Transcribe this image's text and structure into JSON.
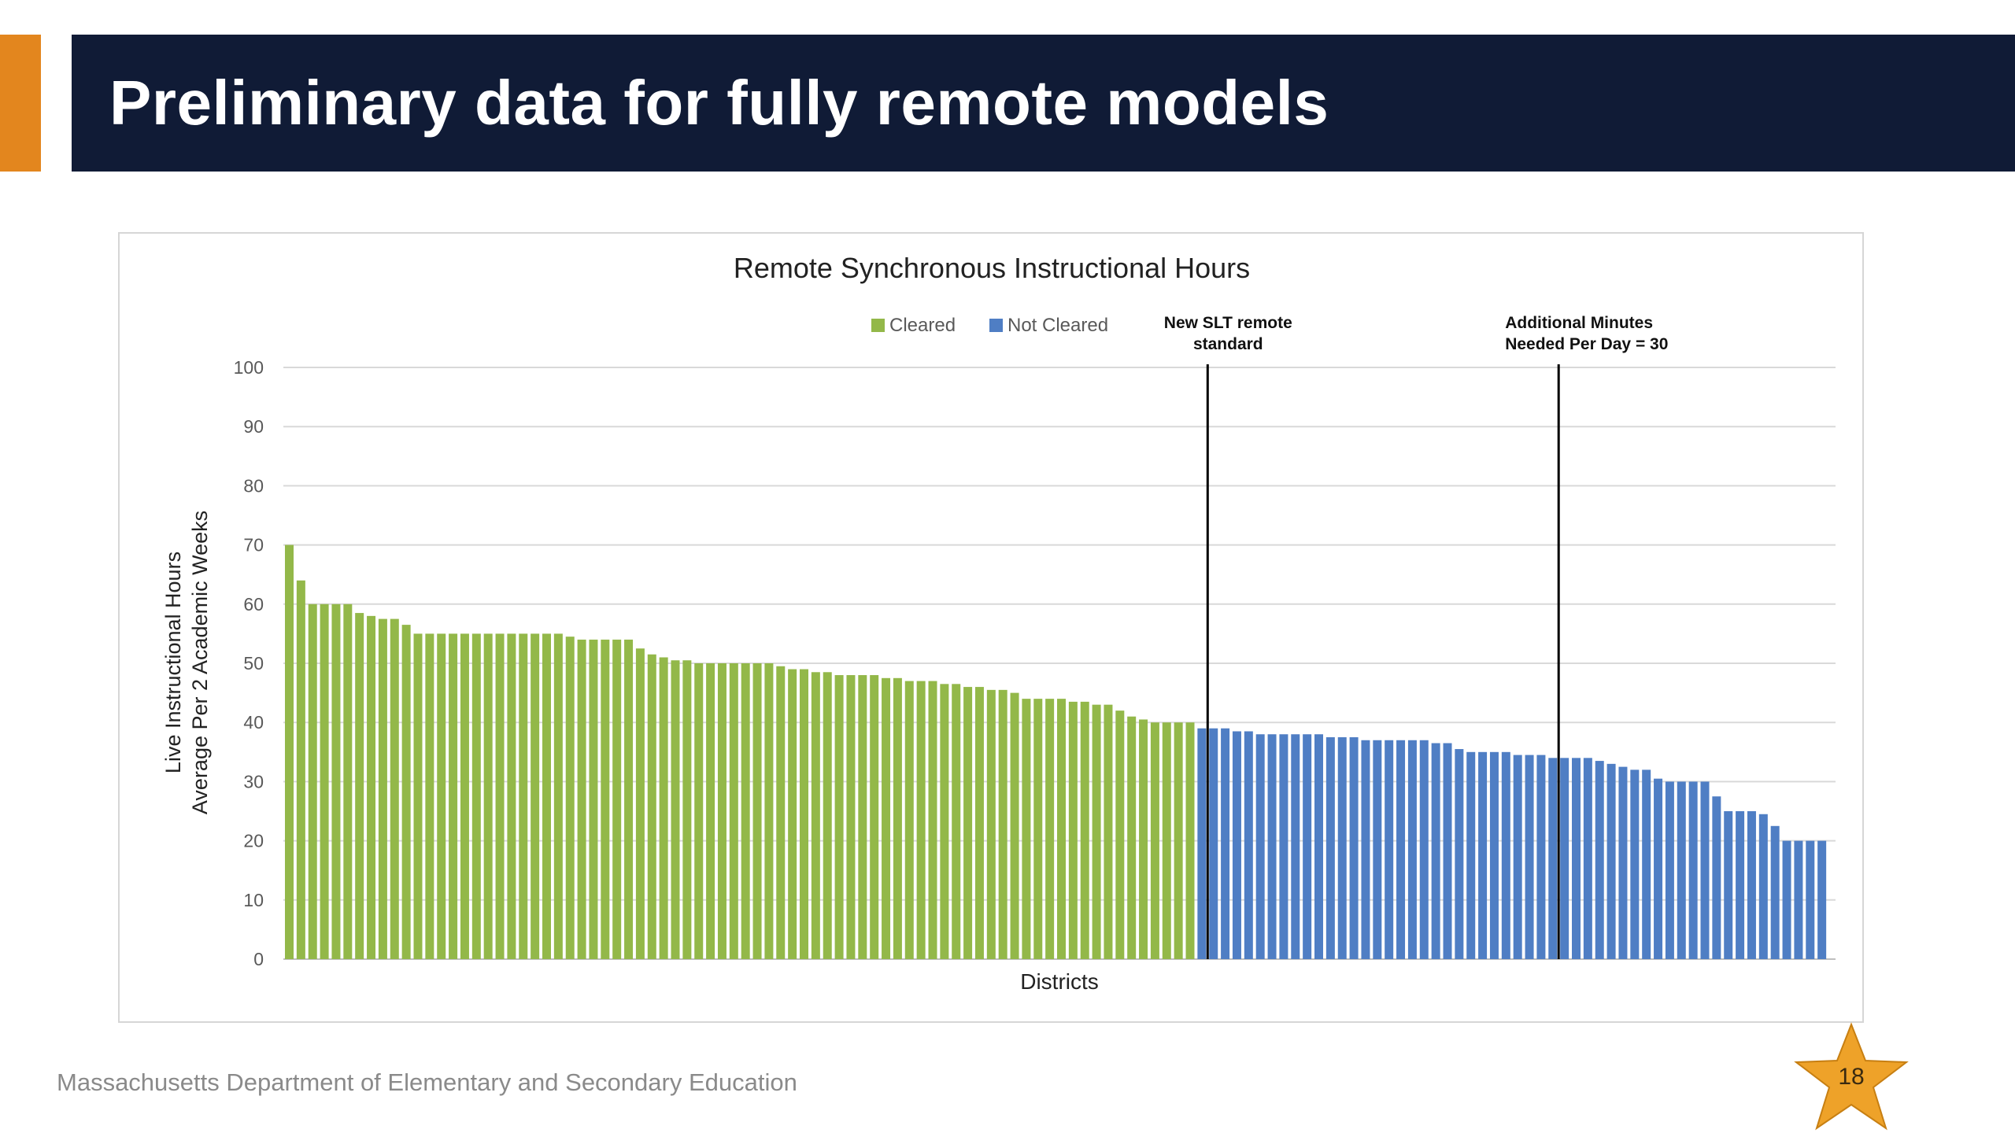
{
  "slide": {
    "title": "Preliminary data for fully remote models",
    "footer": "Massachusetts Department of Elementary and Secondary Education",
    "page_number": "18"
  },
  "colors": {
    "title_bar": "#101B36",
    "accent": "#E3861E",
    "cleared": "#93B849",
    "not_cleared": "#4F7EC4"
  },
  "chart_data": {
    "type": "bar",
    "title": "Remote Synchronous Instructional Hours",
    "xlabel": "Districts",
    "ylabel": [
      "Live Instructional Hours",
      "Average Per 2 Academic Weeks"
    ],
    "ylim": [
      0,
      100
    ],
    "yticks": [
      0,
      10,
      20,
      30,
      40,
      50,
      60,
      70,
      80,
      90,
      100
    ],
    "grid": true,
    "legend_position": "top",
    "series": [
      {
        "name": "Cleared",
        "color": "#93B849",
        "values": [
          70,
          64,
          60,
          60,
          60,
          60,
          58.5,
          58,
          57.5,
          57.5,
          56.5,
          55,
          55,
          55,
          55,
          55,
          55,
          55,
          55,
          55,
          55,
          55,
          55,
          55,
          54.5,
          54,
          54,
          54,
          54,
          54,
          52.5,
          51.5,
          51,
          50.5,
          50.5,
          50,
          50,
          50,
          50,
          50,
          50,
          50,
          49.5,
          49,
          49,
          48.5,
          48.5,
          48,
          48,
          48,
          48,
          47.5,
          47.5,
          47,
          47,
          47,
          46.5,
          46.5,
          46,
          46,
          45.5,
          45.5,
          45,
          44,
          44,
          44,
          44,
          43.5,
          43.5,
          43,
          43,
          42,
          41,
          40.5,
          40,
          40,
          40,
          40
        ]
      },
      {
        "name": "Not Cleared",
        "color": "#4F7EC4",
        "values": [
          39,
          39,
          39,
          38.5,
          38.5,
          38,
          38,
          38,
          38,
          38,
          38,
          37.5,
          37.5,
          37.5,
          37,
          37,
          37,
          37,
          37,
          37,
          36.5,
          36.5,
          35.5,
          35,
          35,
          35,
          35,
          34.5,
          34.5,
          34.5,
          34,
          34,
          34,
          34,
          33.5,
          33,
          32.5,
          32,
          32,
          30.5,
          30,
          30,
          30,
          30,
          27.5,
          25,
          25,
          25,
          24.5,
          22.5,
          20,
          20,
          20,
          20
        ]
      }
    ],
    "annotations": [
      {
        "text": [
          "New SLT remote",
          "standard"
        ],
        "after_index": 78
      },
      {
        "text": [
          "Additional Minutes",
          "Needed Per Day = 30"
        ],
        "after_index": 108
      }
    ]
  }
}
